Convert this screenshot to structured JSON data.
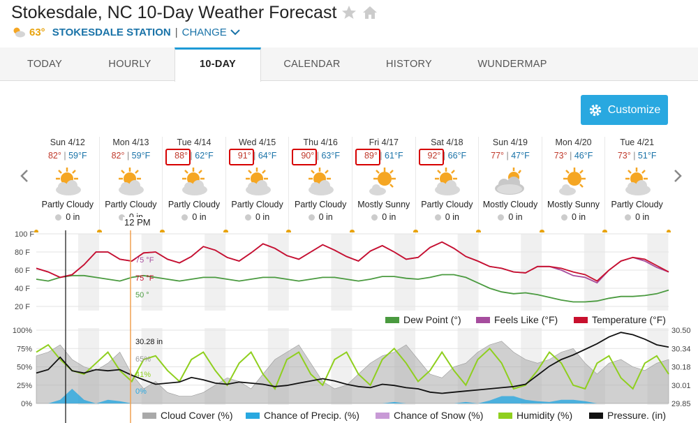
{
  "page": {
    "title": "Stokesdale, NC 10-Day Weather Forecast",
    "current_temp": "63°",
    "station_name": "STOKESDALE STATION",
    "separator": "|",
    "change_label": "CHANGE",
    "icons": [
      "star-icon",
      "home-icon"
    ]
  },
  "tabs": [
    {
      "label": "TODAY",
      "active": false
    },
    {
      "label": "HOURLY",
      "active": false
    },
    {
      "label": "10-DAY",
      "active": true
    },
    {
      "label": "CALENDAR",
      "active": false
    },
    {
      "label": "HISTORY",
      "active": false
    },
    {
      "label": "WUNDERMAP",
      "active": false
    }
  ],
  "customize_label": "Customize",
  "days": [
    {
      "date": "Sun 4/12",
      "hi": "82°",
      "lo": "59°F",
      "cond": "Partly Cloudy",
      "precip": "0 in",
      "icon": "partly-cloudy",
      "highlight": false
    },
    {
      "date": "Mon 4/13",
      "hi": "82°",
      "lo": "59°F",
      "cond": "Partly Cloudy",
      "precip": "0 in",
      "icon": "partly-cloudy",
      "highlight": false
    },
    {
      "date": "Tue 4/14",
      "hi": "88°",
      "lo": "62°F",
      "cond": "Partly Cloudy",
      "precip": "0 in",
      "icon": "partly-cloudy",
      "highlight": true
    },
    {
      "date": "Wed 4/15",
      "hi": "91°",
      "lo": "64°F",
      "cond": "Partly Cloudy",
      "precip": "0 in",
      "icon": "partly-cloudy",
      "highlight": true
    },
    {
      "date": "Thu 4/16",
      "hi": "90°",
      "lo": "63°F",
      "cond": "Partly Cloudy",
      "precip": "0 in",
      "icon": "partly-cloudy",
      "highlight": true
    },
    {
      "date": "Fri 4/17",
      "hi": "89°",
      "lo": "61°F",
      "cond": "Mostly Sunny",
      "precip": "0 in",
      "icon": "mostly-sunny",
      "highlight": true
    },
    {
      "date": "Sat 4/18",
      "hi": "92°",
      "lo": "66°F",
      "cond": "Partly Cloudy",
      "precip": "0 in",
      "icon": "partly-cloudy",
      "highlight": true
    },
    {
      "date": "Sun 4/19",
      "hi": "77°",
      "lo": "47°F",
      "cond": "Mostly Cloudy",
      "precip": "0 in",
      "icon": "mostly-cloudy",
      "highlight": false
    },
    {
      "date": "Mon 4/20",
      "hi": "73°",
      "lo": "46°F",
      "cond": "Mostly Sunny",
      "precip": "0 in",
      "icon": "mostly-sunny",
      "highlight": false
    },
    {
      "date": "Tue 4/21",
      "hi": "73°",
      "lo": "51°F",
      "cond": "Partly Cloudy",
      "precip": "0 in",
      "icon": "partly-cloudy",
      "highlight": false
    }
  ],
  "hover_time": "12 PM",
  "colors": {
    "temperature": "#c8102e",
    "feels_like": "#a64d9e",
    "dew_point": "#4a9a3f",
    "cloud_cover": "#a9a9a9",
    "precip": "#29a8e0",
    "snow": "#c89ad6",
    "humidity": "#8fcf1e",
    "pressure": "#111111",
    "accent": "#29a8e0",
    "hover_line": "#f0a050"
  },
  "chart_data": [
    {
      "type": "line",
      "y_ticks": [
        "100 F",
        "80 F",
        "60 F",
        "40 F",
        "20 F"
      ],
      "ylim": [
        20,
        100
      ],
      "series": [
        {
          "name": "Temperature (°F)",
          "values": [
            62,
            58,
            52,
            55,
            66,
            80,
            80,
            72,
            70,
            79,
            80,
            72,
            68,
            75,
            86,
            82,
            74,
            70,
            79,
            89,
            84,
            76,
            72,
            80,
            88,
            82,
            75,
            70,
            81,
            87,
            80,
            72,
            74,
            85,
            91,
            84,
            75,
            70,
            64,
            62,
            58,
            57,
            64,
            64,
            62,
            58,
            55,
            48,
            60,
            70,
            74,
            72,
            65,
            58
          ]
        },
        {
          "name": "Feels Like (°F)",
          "values": [
            62,
            58,
            52,
            55,
            66,
            80,
            80,
            72,
            70,
            79,
            80,
            72,
            68,
            75,
            86,
            82,
            74,
            70,
            79,
            89,
            84,
            76,
            72,
            80,
            88,
            82,
            75,
            70,
            81,
            87,
            80,
            72,
            74,
            85,
            91,
            84,
            75,
            70,
            64,
            62,
            58,
            57,
            64,
            64,
            60,
            54,
            52,
            46,
            60,
            70,
            74,
            70,
            63,
            58
          ]
        },
        {
          "name": "Dew Point (°)",
          "values": [
            50,
            48,
            52,
            54,
            54,
            52,
            50,
            48,
            52,
            54,
            52,
            50,
            48,
            50,
            52,
            52,
            50,
            48,
            50,
            52,
            52,
            50,
            48,
            50,
            52,
            52,
            50,
            48,
            50,
            53,
            53,
            51,
            50,
            52,
            55,
            55,
            52,
            46,
            40,
            36,
            34,
            35,
            33,
            30,
            27,
            25,
            25,
            26,
            29,
            31,
            31,
            32,
            34,
            38
          ]
        }
      ],
      "hover_values": [
        "75 °F",
        "75 °F",
        "50 °"
      ]
    },
    {
      "type": "area",
      "left_ticks": [
        "100%",
        "75%",
        "50%",
        "25%",
        "0%"
      ],
      "right_ticks": [
        "30.50",
        "30.34",
        "30.18",
        "30.01",
        "29.85"
      ],
      "series": [
        {
          "name": "Cloud Cover (%)",
          "values": [
            65,
            70,
            80,
            60,
            50,
            45,
            55,
            70,
            40,
            20,
            30,
            15,
            10,
            10,
            15,
            25,
            35,
            30,
            20,
            40,
            60,
            70,
            80,
            55,
            30,
            20,
            25,
            40,
            55,
            65,
            70,
            80,
            60,
            40,
            35,
            50,
            55,
            70,
            80,
            85,
            70,
            60,
            55,
            60,
            70,
            75,
            55,
            40,
            55,
            60,
            50,
            45,
            55,
            60
          ]
        },
        {
          "name": "Chance of Precip. (%)",
          "values": [
            0,
            0,
            5,
            20,
            5,
            0,
            5,
            3,
            0,
            0,
            0,
            0,
            0,
            0,
            0,
            0,
            0,
            0,
            0,
            0,
            0,
            0,
            0,
            0,
            0,
            0,
            0,
            0,
            0,
            0,
            2,
            0,
            0,
            0,
            0,
            0,
            2,
            0,
            4,
            10,
            10,
            5,
            3,
            2,
            5,
            5,
            3,
            0,
            0,
            0,
            0,
            0,
            0,
            0
          ]
        },
        {
          "name": "Chance of Snow (%)",
          "values": [
            0,
            0,
            0,
            0,
            0,
            0,
            0,
            0,
            0,
            0,
            0,
            0,
            0,
            0,
            0,
            0,
            0,
            0,
            0,
            0,
            0,
            0,
            0,
            0,
            0,
            0,
            0,
            0,
            0,
            0,
            0,
            0,
            0,
            0,
            0,
            0,
            0,
            0,
            0,
            0,
            0,
            0,
            0,
            0,
            0,
            0,
            0,
            0,
            0,
            0,
            0,
            0,
            0,
            0
          ]
        },
        {
          "name": "Humidity (%)",
          "values": [
            70,
            80,
            60,
            45,
            40,
            55,
            70,
            45,
            30,
            60,
            65,
            45,
            30,
            60,
            70,
            45,
            25,
            55,
            70,
            40,
            20,
            60,
            70,
            40,
            25,
            60,
            70,
            40,
            25,
            60,
            75,
            55,
            30,
            45,
            70,
            45,
            25,
            60,
            75,
            55,
            20,
            25,
            45,
            70,
            55,
            25,
            20,
            55,
            65,
            35,
            20,
            55,
            65,
            40
          ]
        },
        {
          "name": "Pressure. (in)",
          "values": [
            30.12,
            30.15,
            30.26,
            30.14,
            30.12,
            30.15,
            30.14,
            30.15,
            30.1,
            30.06,
            30.02,
            30.03,
            30.04,
            30.08,
            30.06,
            30.03,
            30.02,
            30.04,
            30.03,
            30.02,
            30.0,
            30.01,
            30.03,
            30.05,
            30.07,
            30.05,
            30.02,
            30.0,
            29.99,
            30.02,
            30.01,
            29.99,
            29.98,
            29.95,
            29.94,
            29.95,
            29.96,
            29.97,
            29.98,
            29.99,
            30.0,
            30.02,
            30.1,
            30.18,
            30.24,
            30.28,
            30.33,
            30.38,
            30.44,
            30.48,
            30.46,
            30.42,
            30.37,
            30.35
          ]
        }
      ],
      "hover_values": [
        "30.28 in",
        "65%",
        "41%",
        "0%"
      ]
    }
  ]
}
